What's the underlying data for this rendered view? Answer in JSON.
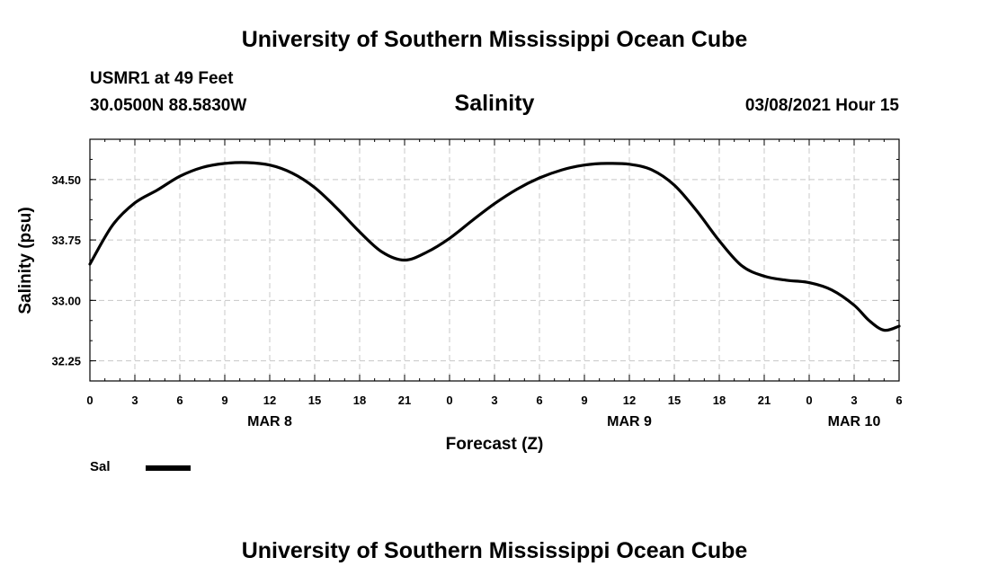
{
  "header": {
    "title": "University of Southern Mississippi Ocean Cube",
    "station": "USMR1 at 49 Feet",
    "coords": "30.0500N 88.5830W",
    "timestamp": "03/08/2021 Hour 15"
  },
  "footer": {
    "title": "University of Southern Mississippi Ocean Cube"
  },
  "chart_data": {
    "type": "line",
    "title": "Salinity",
    "xlabel": "Forecast (Z)",
    "ylabel": "Salinity (psu)",
    "xlim": [
      0,
      54
    ],
    "ylim": [
      32.0,
      35.0
    ],
    "grid": true,
    "x_tick_labels": [
      "0",
      "3",
      "6",
      "9",
      "12",
      "15",
      "18",
      "21",
      "0",
      "3",
      "6",
      "9",
      "12",
      "15",
      "18",
      "21",
      "0",
      "3",
      "6"
    ],
    "y_ticks": [
      32.25,
      33.0,
      33.75,
      34.5
    ],
    "y_tick_labels": [
      "32.25",
      "33.00",
      "33.75",
      "34.50"
    ],
    "day_labels": [
      {
        "label": "MAR 8",
        "x": 12
      },
      {
        "label": "MAR 9",
        "x": 36
      },
      {
        "label": "MAR 10",
        "x": 51
      }
    ],
    "legend": [
      {
        "name": "Sal",
        "color": "#000000"
      }
    ],
    "series": [
      {
        "name": "Sal",
        "color": "#000000",
        "x": [
          0,
          1.5,
          3,
          4.5,
          6,
          7.5,
          9,
          10.5,
          12,
          13.5,
          15,
          16.5,
          18,
          19.5,
          21,
          22.5,
          24,
          25.5,
          27,
          28.5,
          30,
          31.5,
          33,
          34.5,
          36,
          37.5,
          39,
          40.5,
          42,
          43.5,
          45,
          46.5,
          48,
          49.5,
          51,
          52,
          53,
          54
        ],
        "y": [
          33.45,
          33.93,
          34.21,
          34.37,
          34.54,
          34.65,
          34.7,
          34.71,
          34.68,
          34.58,
          34.4,
          34.14,
          33.85,
          33.6,
          33.5,
          33.6,
          33.77,
          33.99,
          34.2,
          34.38,
          34.52,
          34.62,
          34.68,
          34.7,
          34.69,
          34.62,
          34.43,
          34.11,
          33.74,
          33.43,
          33.3,
          33.25,
          33.22,
          33.13,
          32.94,
          32.75,
          32.63,
          32.68
        ]
      }
    ]
  }
}
